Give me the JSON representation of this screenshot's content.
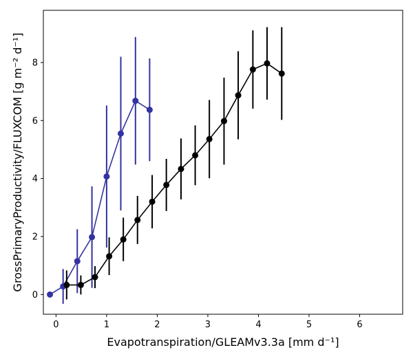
{
  "chart_data": {
    "type": "line",
    "xlabel": "Evapotranspiration/GLEAMv3.3a [mm d⁻¹]",
    "ylabel": "GrossPrimaryProductivity/FLUXCOM [g m⁻² d⁻¹]",
    "xlim": [
      -0.25,
      6.85
    ],
    "ylim": [
      -0.68,
      9.8
    ],
    "xticks": [
      0,
      1,
      2,
      3,
      4,
      5,
      6
    ],
    "yticks": [
      0,
      2,
      4,
      6,
      8
    ],
    "grid": false,
    "series": [
      {
        "color": "#3333a1",
        "x": [
          -0.12,
          0.14,
          0.42,
          0.71,
          1.0,
          1.28,
          1.57,
          1.85
        ],
        "y": [
          0.0,
          0.28,
          1.15,
          1.98,
          4.07,
          5.55,
          6.68,
          6.37
        ],
        "yerr": [
          0.0,
          0.6,
          1.1,
          1.75,
          2.45,
          2.65,
          2.2,
          1.77
        ]
      },
      {
        "color": "#000000",
        "x": [
          0.21,
          0.49,
          0.77,
          1.05,
          1.33,
          1.61,
          1.9,
          2.18,
          2.47,
          2.75,
          3.03,
          3.32,
          3.6,
          3.89,
          4.17,
          4.46
        ],
        "y": [
          0.33,
          0.33,
          0.6,
          1.32,
          1.9,
          2.57,
          3.2,
          3.78,
          4.33,
          4.8,
          5.36,
          5.98,
          6.87,
          7.76,
          7.97,
          7.62
        ],
        "yerr": [
          0.5,
          0.33,
          0.38,
          0.65,
          0.75,
          0.83,
          0.92,
          0.9,
          1.05,
          1.03,
          1.35,
          1.5,
          1.52,
          1.35,
          1.25,
          1.6
        ]
      }
    ]
  }
}
